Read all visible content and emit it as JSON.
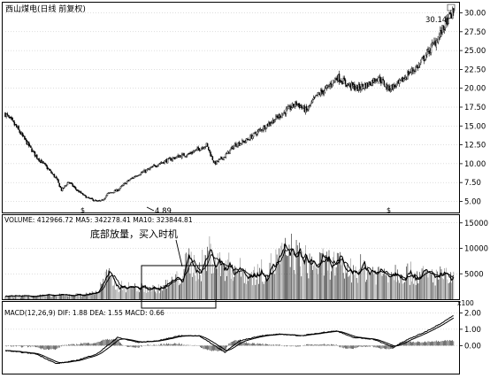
{
  "header": {
    "title": "西山煤电(日线 前复权)"
  },
  "price_panel": {
    "yticks": [
      "30.00",
      "27.50",
      "25.00",
      "22.50",
      "20.00",
      "17.50",
      "15.00",
      "12.50",
      "10.00",
      "7.50",
      "5.00"
    ],
    "low_label": "4.89",
    "high_label": "30.14",
    "year_marks": [
      "$",
      "$"
    ]
  },
  "volume_panel": {
    "legend": "VOLUME: 412966.72  MA5: 342278.41  MA10: 323844.81",
    "annotation": "底部放量，买入时机",
    "yticks": [
      "15000",
      "10000",
      "5000"
    ],
    "unit": "x100"
  },
  "macd_panel": {
    "legend": "MACD(12,26,9)  DIF: 1.88  DEA: 1.55  MACD: 0.66",
    "yticks": [
      "2.00",
      "1.00",
      "0.00"
    ]
  },
  "colors": {
    "up": "#ffffff",
    "down": "#000000",
    "frame": "#000000",
    "grid": "#bdbdbd"
  },
  "chart_data": [
    {
      "type": "candlestick",
      "title": "西山煤电(日线 前复权)",
      "ylim": [
        4.0,
        31.0
      ],
      "y_ticks": [
        5.0,
        7.5,
        10.0,
        12.5,
        15.0,
        17.5,
        20.0,
        22.5,
        25.0,
        27.5,
        30.0
      ],
      "annotations": [
        {
          "label": "4.89",
          "value": 4.89
        },
        {
          "label": "30.14",
          "value": 30.14
        }
      ],
      "close_trend_keypoints": [
        [
          0,
          16.6
        ],
        [
          10,
          15.0
        ],
        [
          20,
          13.0
        ],
        [
          30,
          11.0
        ],
        [
          40,
          9.6
        ],
        [
          50,
          8.0
        ],
        [
          55,
          6.5
        ],
        [
          62,
          7.6
        ],
        [
          70,
          6.5
        ],
        [
          80,
          5.5
        ],
        [
          90,
          5.0
        ],
        [
          95,
          5.1
        ],
        [
          100,
          6.0
        ],
        [
          110,
          6.5
        ],
        [
          120,
          7.7
        ],
        [
          130,
          8.6
        ],
        [
          140,
          9.2
        ],
        [
          150,
          10.0
        ],
        [
          160,
          10.5
        ],
        [
          170,
          11.0
        ],
        [
          180,
          11.3
        ],
        [
          190,
          12.0
        ],
        [
          197,
          12.5
        ],
        [
          205,
          10.0
        ],
        [
          215,
          11.0
        ],
        [
          225,
          12.5
        ],
        [
          235,
          13.0
        ],
        [
          245,
          14.0
        ],
        [
          255,
          15.0
        ],
        [
          265,
          16.0
        ],
        [
          275,
          17.0
        ],
        [
          285,
          18.0
        ],
        [
          295,
          17.0
        ],
        [
          305,
          19.0
        ],
        [
          315,
          20.0
        ],
        [
          325,
          21.5
        ],
        [
          335,
          20.5
        ],
        [
          345,
          20.0
        ],
        [
          355,
          20.5
        ],
        [
          365,
          21.5
        ],
        [
          375,
          20.0
        ],
        [
          385,
          20.5
        ],
        [
          395,
          22.0
        ],
        [
          405,
          23.0
        ],
        [
          415,
          25.0
        ],
        [
          425,
          27.0
        ],
        [
          435,
          29.5
        ],
        [
          440,
          30.14
        ]
      ]
    },
    {
      "type": "bar",
      "title": "VOLUME",
      "series": [
        {
          "name": "MA5",
          "last": 342278.41
        },
        {
          "name": "MA10",
          "last": 323844.81
        }
      ],
      "unit": "x100",
      "ylim": [
        0,
        16000
      ],
      "y_ticks": [
        5000,
        10000,
        15000
      ],
      "volume_trend_keypoints": [
        [
          0,
          600
        ],
        [
          40,
          700
        ],
        [
          80,
          900
        ],
        [
          90,
          1500
        ],
        [
          100,
          4500
        ],
        [
          110,
          2500
        ],
        [
          130,
          2200
        ],
        [
          150,
          2000
        ],
        [
          170,
          4000
        ],
        [
          180,
          7500
        ],
        [
          190,
          5500
        ],
        [
          200,
          9000
        ],
        [
          210,
          6500
        ],
        [
          225,
          6000
        ],
        [
          240,
          4500
        ],
        [
          255,
          5500
        ],
        [
          270,
          8000
        ],
        [
          280,
          9000
        ],
        [
          290,
          7500
        ],
        [
          305,
          6500
        ],
        [
          320,
          7000
        ],
        [
          335,
          5500
        ],
        [
          350,
          6000
        ],
        [
          365,
          5000
        ],
        [
          380,
          5500
        ],
        [
          395,
          5000
        ],
        [
          410,
          4500
        ],
        [
          425,
          4500
        ],
        [
          440,
          3800
        ]
      ]
    },
    {
      "type": "line",
      "title": "MACD(12,26,9)",
      "series": [
        {
          "name": "DIF",
          "last": 1.88
        },
        {
          "name": "DEA",
          "last": 1.55
        },
        {
          "name": "MACD",
          "last": 0.66
        }
      ],
      "ylim": [
        -1.6,
        2.4
      ],
      "y_ticks": [
        0.0,
        1.0,
        2.0
      ],
      "dif_keypoints": [
        [
          0,
          -0.3
        ],
        [
          30,
          -0.5
        ],
        [
          50,
          -1.1
        ],
        [
          70,
          -0.9
        ],
        [
          90,
          -0.5
        ],
        [
          110,
          0.5
        ],
        [
          130,
          0.2
        ],
        [
          150,
          0.3
        ],
        [
          170,
          0.6
        ],
        [
          190,
          0.6
        ],
        [
          205,
          0.0
        ],
        [
          215,
          -0.4
        ],
        [
          230,
          0.3
        ],
        [
          250,
          0.6
        ],
        [
          270,
          0.7
        ],
        [
          290,
          0.6
        ],
        [
          310,
          0.8
        ],
        [
          325,
          0.9
        ],
        [
          340,
          0.5
        ],
        [
          360,
          0.4
        ],
        [
          380,
          -0.1
        ],
        [
          395,
          0.4
        ],
        [
          410,
          0.8
        ],
        [
          425,
          1.3
        ],
        [
          440,
          1.88
        ]
      ]
    }
  ]
}
